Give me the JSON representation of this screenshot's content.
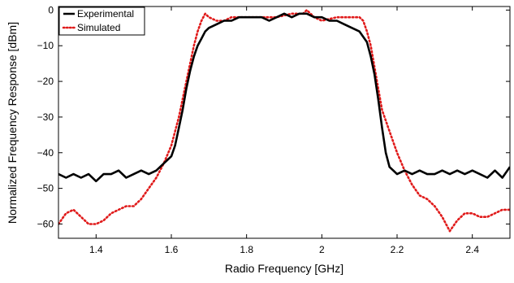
{
  "chart_data": {
    "type": "line",
    "xlabel": "Radio Frequency [GHz]",
    "ylabel": "Normalized Frequency Response [dBm]",
    "xlim": [
      1.3,
      2.5
    ],
    "ylim": [
      -64,
      1
    ],
    "x_ticks": [
      1.4,
      1.6,
      1.8,
      2.0,
      2.2,
      2.4
    ],
    "x_tick_labels": [
      "1.4",
      "1.6",
      "1.8",
      "2",
      "2.2",
      "2.4"
    ],
    "y_ticks": [
      0,
      -10,
      -20,
      -30,
      -40,
      -50,
      -60
    ],
    "y_tick_labels": [
      "0",
      "−10",
      "−20",
      "−30",
      "−40",
      "−50",
      "−60"
    ],
    "grid": false,
    "legend_position": "top-left",
    "series": [
      {
        "name": "Experimental",
        "color": "#000000",
        "style": "solid",
        "x": [
          1.3,
          1.32,
          1.34,
          1.36,
          1.38,
          1.4,
          1.42,
          1.44,
          1.46,
          1.48,
          1.5,
          1.52,
          1.54,
          1.56,
          1.58,
          1.59,
          1.6,
          1.61,
          1.62,
          1.63,
          1.64,
          1.65,
          1.66,
          1.67,
          1.68,
          1.69,
          1.7,
          1.72,
          1.74,
          1.76,
          1.78,
          1.8,
          1.82,
          1.84,
          1.86,
          1.88,
          1.9,
          1.92,
          1.94,
          1.96,
          1.98,
          2.0,
          2.02,
          2.04,
          2.06,
          2.08,
          2.1,
          2.12,
          2.13,
          2.14,
          2.15,
          2.16,
          2.17,
          2.18,
          2.19,
          2.2,
          2.22,
          2.24,
          2.26,
          2.28,
          2.3,
          2.32,
          2.34,
          2.36,
          2.38,
          2.4,
          2.42,
          2.44,
          2.46,
          2.48,
          2.5
        ],
        "y": [
          -46,
          -47,
          -46,
          -47,
          -46,
          -48,
          -46,
          -46,
          -45,
          -47,
          -46,
          -45,
          -46,
          -45,
          -43,
          -42,
          -41,
          -38,
          -33,
          -28,
          -22,
          -17,
          -13,
          -10,
          -8,
          -6,
          -5,
          -4,
          -3,
          -3,
          -2,
          -2,
          -2,
          -2,
          -3,
          -2,
          -1,
          -2,
          -1,
          -1,
          -2,
          -2,
          -3,
          -3,
          -4,
          -5,
          -6,
          -9,
          -13,
          -18,
          -25,
          -33,
          -40,
          -44,
          -45,
          -46,
          -45,
          -46,
          -45,
          -46,
          -46,
          -45,
          -46,
          -45,
          -46,
          -45,
          -46,
          -47,
          -45,
          -47,
          -44
        ]
      },
      {
        "name": "Simulated",
        "color": "#e01b1b",
        "style": "dotted",
        "x": [
          1.3,
          1.32,
          1.34,
          1.36,
          1.38,
          1.4,
          1.42,
          1.44,
          1.46,
          1.48,
          1.5,
          1.52,
          1.54,
          1.56,
          1.58,
          1.6,
          1.62,
          1.64,
          1.66,
          1.67,
          1.68,
          1.69,
          1.7,
          1.72,
          1.74,
          1.76,
          1.8,
          1.84,
          1.88,
          1.92,
          1.95,
          1.96,
          1.98,
          2.0,
          2.04,
          2.08,
          2.1,
          2.11,
          2.12,
          2.13,
          2.14,
          2.15,
          2.16,
          2.18,
          2.2,
          2.22,
          2.24,
          2.26,
          2.28,
          2.3,
          2.32,
          2.34,
          2.36,
          2.38,
          2.4,
          2.42,
          2.44,
          2.46,
          2.48,
          2.5
        ],
        "y": [
          -60,
          -57,
          -56,
          -58,
          -60,
          -60,
          -59,
          -57,
          -56,
          -55,
          -55,
          -53,
          -50,
          -47,
          -43,
          -38,
          -30,
          -20,
          -10,
          -6,
          -3,
          -1,
          -2,
          -3,
          -3,
          -2,
          -2,
          -2,
          -2,
          -1,
          -1,
          0,
          -2,
          -3,
          -2,
          -2,
          -2,
          -3,
          -6,
          -10,
          -16,
          -22,
          -28,
          -34,
          -40,
          -45,
          -49,
          -52,
          -53,
          -55,
          -58,
          -62,
          -59,
          -57,
          -57,
          -58,
          -58,
          -57,
          -56,
          -56
        ]
      }
    ]
  }
}
